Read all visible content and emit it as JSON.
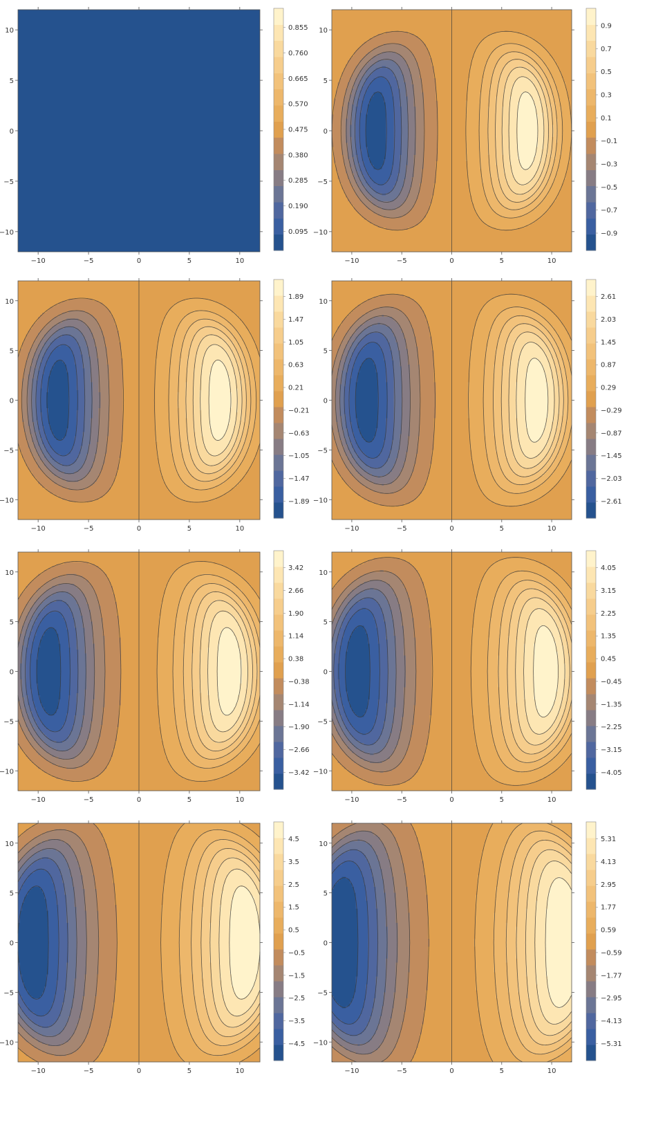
{
  "chart_data": [
    {
      "type": "contour",
      "xlim": [
        -12,
        12
      ],
      "ylim": [
        -12,
        12
      ],
      "x_ticks": [
        -10,
        -5,
        0,
        5,
        10
      ],
      "y_ticks": [
        -10,
        -5,
        0,
        5,
        10
      ],
      "amplitude": 0,
      "uniform_level": 0.0,
      "colorbar_range": [
        0,
        0.95
      ],
      "colorbar_labels": [
        "0.855",
        "0.760",
        "0.665",
        "0.570",
        "0.475",
        "0.380",
        "0.285",
        "0.190",
        "0.095"
      ]
    },
    {
      "type": "contour",
      "xlim": [
        -12,
        12
      ],
      "ylim": [
        -12,
        12
      ],
      "x_ticks": [
        -10,
        -5,
        0,
        5,
        10
      ],
      "y_ticks": [
        -10,
        -5,
        0,
        5,
        10
      ],
      "amplitude": 1.0,
      "boundary_radius": 10.5,
      "center_radius": 8.5,
      "colorbar_labels": [
        "0.9",
        "0.7",
        "0.5",
        "0.3",
        "0.1",
        "−0.1",
        "−0.3",
        "−0.5",
        "−0.7",
        "−0.9"
      ]
    },
    {
      "type": "contour",
      "xlim": [
        -12,
        12
      ],
      "ylim": [
        -12,
        12
      ],
      "x_ticks": [
        -10,
        -5,
        0,
        5,
        10
      ],
      "y_ticks": [
        -10,
        -5,
        0,
        5,
        10
      ],
      "amplitude": 2.1,
      "boundary_radius": 11.0,
      "center_radius": 9.0,
      "colorbar_labels": [
        "1.89",
        "1.47",
        "1.05",
        "0.63",
        "0.21",
        "−0.21",
        "−0.63",
        "−1.05",
        "−1.47",
        "−1.89"
      ]
    },
    {
      "type": "contour",
      "xlim": [
        -12,
        12
      ],
      "ylim": [
        -12,
        12
      ],
      "x_ticks": [
        -10,
        -5,
        0,
        5,
        10
      ],
      "y_ticks": [
        -10,
        -5,
        0,
        5,
        10
      ],
      "amplitude": 2.9,
      "boundary_radius": 11.5,
      "center_radius": 9.5,
      "colorbar_labels": [
        "2.61",
        "2.03",
        "1.45",
        "0.87",
        "0.29",
        "−0.29",
        "−0.87",
        "−1.45",
        "−2.03",
        "−2.61"
      ]
    },
    {
      "type": "contour",
      "xlim": [
        -12,
        12
      ],
      "ylim": [
        -12,
        12
      ],
      "x_ticks": [
        -10,
        -5,
        0,
        5,
        10
      ],
      "y_ticks": [
        -10,
        -5,
        0,
        5,
        10
      ],
      "amplitude": 3.8,
      "boundary_radius": 12.0,
      "center_radius": 10.0,
      "colorbar_labels": [
        "3.42",
        "2.66",
        "1.90",
        "1.14",
        "0.38",
        "−0.38",
        "−1.14",
        "−1.90",
        "−2.66",
        "−3.42"
      ]
    },
    {
      "type": "contour",
      "xlim": [
        -12,
        12
      ],
      "ylim": [
        -12,
        12
      ],
      "x_ticks": [
        -10,
        -5,
        0,
        5,
        10
      ],
      "y_ticks": [
        -10,
        -5,
        0,
        5,
        10
      ],
      "amplitude": 4.5,
      "boundary_radius": 12.5,
      "center_radius": 10.5,
      "colorbar_labels": [
        "4.05",
        "3.15",
        "2.25",
        "1.35",
        "0.45",
        "−0.45",
        "−1.35",
        "−2.25",
        "−3.15",
        "−4.05"
      ]
    },
    {
      "type": "contour",
      "xlim": [
        -12,
        12
      ],
      "ylim": [
        -12,
        12
      ],
      "x_ticks": [
        -10,
        -5,
        0,
        5,
        10
      ],
      "y_ticks": [
        -10,
        -5,
        0,
        5,
        10
      ],
      "amplitude": 5.0,
      "boundary_radius": 14.0,
      "center_radius": 11.5,
      "colorbar_labels": [
        "4.5",
        "3.5",
        "2.5",
        "1.5",
        "0.5",
        "−0.5",
        "−1.5",
        "−2.5",
        "−3.5",
        "−4.5"
      ]
    },
    {
      "type": "contour",
      "xlim": [
        -12,
        12
      ],
      "ylim": [
        -12,
        12
      ],
      "x_ticks": [
        -10,
        -5,
        0,
        5,
        10
      ],
      "y_ticks": [
        -10,
        -5,
        0,
        5,
        10
      ],
      "amplitude": 5.9,
      "boundary_radius": 15.0,
      "center_radius": 12.0,
      "colorbar_labels": [
        "5.31",
        "4.13",
        "2.95",
        "1.77",
        "0.59",
        "−0.59",
        "−1.77",
        "−2.95",
        "−4.13",
        "−5.31"
      ]
    }
  ],
  "colorscale": [
    "#25528e",
    "#3a5fa1",
    "#50679f",
    "#6b7595",
    "#877c84",
    "#a58672",
    "#c28c5d",
    "#e0a04f",
    "#e8ad5c",
    "#edb76b",
    "#f2c27b",
    "#f6cd8c",
    "#f9d99e",
    "#fde6b3",
    "#fff3cb"
  ],
  "line_color": "#3b3b3b"
}
